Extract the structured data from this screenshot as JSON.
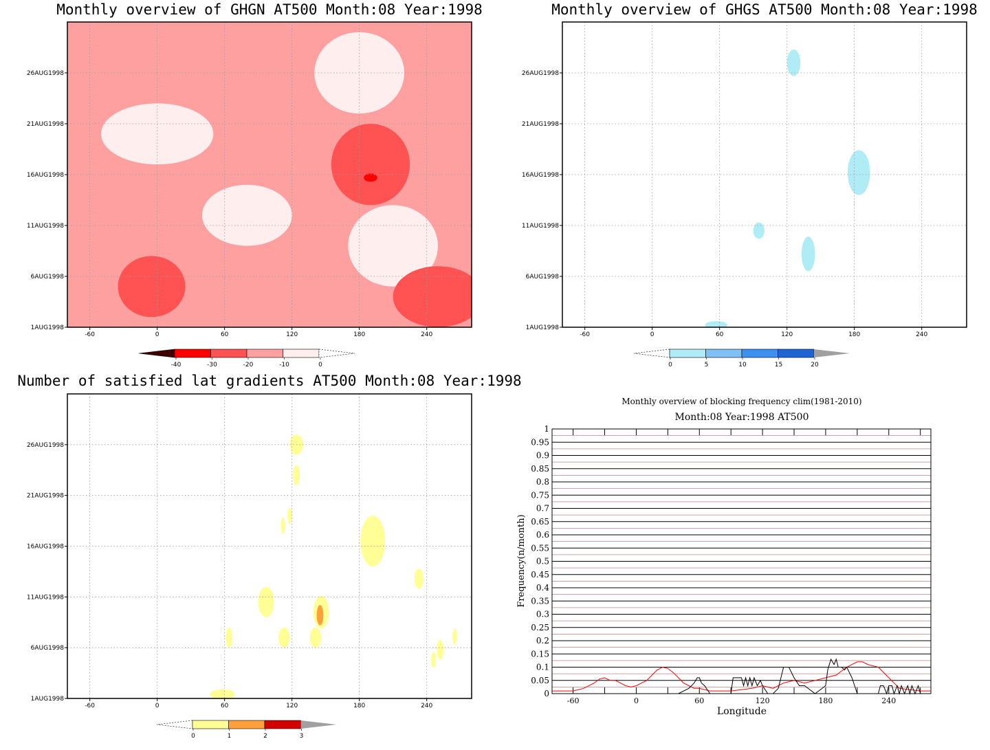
{
  "colors": {
    "red_scale": [
      "#3f0000",
      "#ff0000",
      "#ff5252",
      "#ffa0a0",
      "#ffeeee"
    ],
    "blue_scale": [
      "#b0ecf5",
      "#80c0f5",
      "#3c90f0",
      "#1e64d2",
      "#a0a0a0"
    ],
    "yellow_scale": [
      "#ffff96",
      "#ffa03c",
      "#d20000",
      "#a0a0a0"
    ],
    "freq_clim": "#ff0000",
    "freq_obs": "#000000",
    "grid_alt": "#c08080"
  },
  "chart_data": [
    {
      "type": "heatmap",
      "title": "Monthly overview of GHGN AT500 Month:08 Year:1998",
      "x_ticks": [
        "-60",
        "0",
        "60",
        "120",
        "180",
        "240"
      ],
      "x_tick_values": [
        -60,
        0,
        60,
        120,
        180,
        240
      ],
      "xlim": [
        -80,
        280
      ],
      "y_ticks": [
        "1AUG1998",
        "6AUG1998",
        "11AUG1998",
        "16AUG1998",
        "21AUG1998",
        "26AUG1998"
      ],
      "y_tick_values": [
        1,
        6,
        11,
        16,
        21,
        26
      ],
      "ylim": [
        1,
        31
      ],
      "colorbar": {
        "labels": [
          "-40",
          "-30",
          "-20",
          "-10",
          "0"
        ],
        "values": [
          -40,
          -30,
          -20,
          -10,
          0
        ]
      },
      "regions": [
        {
          "level": "-10..0",
          "lon": 180,
          "day": 26,
          "rx": 40,
          "ry": 4
        },
        {
          "level": "-10..0",
          "lon": 0,
          "day": 20,
          "rx": 50,
          "ry": 3
        },
        {
          "level": "-10..0",
          "lon": 80,
          "day": 12,
          "rx": 40,
          "ry": 3
        },
        {
          "level": "-10..0",
          "lon": 210,
          "day": 9,
          "rx": 40,
          "ry": 4
        },
        {
          "level": "-30..-20",
          "lon": 190,
          "day": 17,
          "rx": 35,
          "ry": 4
        },
        {
          "level": "-30..-20",
          "lon": -5,
          "day": 5,
          "rx": 30,
          "ry": 3
        },
        {
          "level": "-30..-20",
          "lon": 250,
          "day": 4,
          "rx": 40,
          "ry": 3
        },
        {
          "level": "-40..-30",
          "lon": 190,
          "day": 15.7,
          "rx": 6,
          "ry": 0.4
        }
      ]
    },
    {
      "type": "heatmap",
      "title": "Monthly overview of GHGS AT500 Month:08 Year:1998",
      "x_ticks": [
        "-60",
        "0",
        "60",
        "120",
        "180",
        "240"
      ],
      "x_tick_values": [
        -60,
        0,
        60,
        120,
        180,
        240
      ],
      "xlim": [
        -80,
        280
      ],
      "y_ticks": [
        "1AUG1998",
        "6AUG1998",
        "11AUG1998",
        "16AUG1998",
        "21AUG1998",
        "26AUG1998"
      ],
      "y_tick_values": [
        1,
        6,
        11,
        16,
        21,
        26
      ],
      "ylim": [
        1,
        31
      ],
      "colorbar": {
        "labels": [
          "0",
          "5",
          "10",
          "15",
          "20"
        ],
        "values": [
          0,
          5,
          10,
          15,
          20
        ]
      },
      "regions": [
        {
          "level": "0..5",
          "lon": 126,
          "day": 27,
          "rx": 6,
          "ry": 1.3
        },
        {
          "level": "0..5",
          "lon": 184,
          "day": 16.2,
          "rx": 10,
          "ry": 2.2
        },
        {
          "level": "0..5",
          "lon": 95,
          "day": 10.5,
          "rx": 5,
          "ry": 0.8
        },
        {
          "level": "0..5",
          "lon": 139,
          "day": 8.2,
          "rx": 6,
          "ry": 1.7
        },
        {
          "level": "0..5",
          "lon": 57,
          "day": 1.2,
          "rx": 10,
          "ry": 0.4
        }
      ]
    },
    {
      "type": "heatmap",
      "title": "Number of satisfied lat gradients AT500 Month:08 Year:1998",
      "x_ticks": [
        "-60",
        "0",
        "60",
        "120",
        "180",
        "240"
      ],
      "x_tick_values": [
        -60,
        0,
        60,
        120,
        180,
        240
      ],
      "xlim": [
        -80,
        280
      ],
      "y_ticks": [
        "1AUG1998",
        "6AUG1998",
        "11AUG1998",
        "16AUG1998",
        "21AUG1998",
        "26AUG1998"
      ],
      "y_tick_values": [
        1,
        6,
        11,
        16,
        21,
        26
      ],
      "ylim": [
        1,
        31
      ],
      "colorbar": {
        "labels": [
          "0",
          "1",
          "2",
          "3"
        ],
        "values": [
          0,
          1,
          2,
          3
        ]
      },
      "regions": [
        {
          "level": "0..1",
          "lon": 124,
          "day": 26,
          "rx": 6,
          "ry": 1
        },
        {
          "level": "0..1",
          "lon": 124,
          "day": 23,
          "rx": 3,
          "ry": 1
        },
        {
          "level": "0..1",
          "lon": 112,
          "day": 18,
          "rx": 2,
          "ry": 0.8
        },
        {
          "level": "0..1",
          "lon": 118,
          "day": 19,
          "rx": 2,
          "ry": 0.8
        },
        {
          "level": "0..1",
          "lon": 192,
          "day": 16.5,
          "rx": 11,
          "ry": 2.5
        },
        {
          "level": "0..1",
          "lon": 233,
          "day": 12.8,
          "rx": 4,
          "ry": 1
        },
        {
          "level": "0..1",
          "lon": 97,
          "day": 10.5,
          "rx": 7,
          "ry": 1.5
        },
        {
          "level": "0..1",
          "lon": 146,
          "day": 9.5,
          "rx": 7,
          "ry": 1.6
        },
        {
          "level": "0..1",
          "lon": 113,
          "day": 7,
          "rx": 5,
          "ry": 1
        },
        {
          "level": "0..1",
          "lon": 141,
          "day": 7,
          "rx": 5,
          "ry": 1
        },
        {
          "level": "0..1",
          "lon": 64,
          "day": 7,
          "rx": 3,
          "ry": 1
        },
        {
          "level": "0..1",
          "lon": 252,
          "day": 5.8,
          "rx": 3,
          "ry": 1
        },
        {
          "level": "0..1",
          "lon": 246,
          "day": 4.8,
          "rx": 2,
          "ry": 0.8
        },
        {
          "level": "0..1",
          "lon": 265,
          "day": 7.1,
          "rx": 2,
          "ry": 0.8
        },
        {
          "level": "0..1",
          "lon": 58,
          "day": 1.4,
          "rx": 11,
          "ry": 0.5
        },
        {
          "level": "1..2",
          "lon": 145,
          "day": 9.2,
          "rx": 3,
          "ry": 1
        }
      ]
    },
    {
      "type": "line",
      "title": "Monthly overview of blocking frequency clim(1981-2010)",
      "subtitle": "Month:08 Year:1998  AT500",
      "xlabel": "Longitude",
      "ylabel": "Frequency(n/month)",
      "xlim": [
        -80,
        280
      ],
      "ylim": [
        0,
        1
      ],
      "x_ticks": [
        "-60",
        "0",
        "60",
        "120",
        "180",
        "240"
      ],
      "x_tick_values": [
        -60,
        0,
        60,
        120,
        180,
        240
      ],
      "y_ticks": [
        "0",
        "0.05",
        "0.1",
        "0.15",
        "0.2",
        "0.25",
        "0.3",
        "0.35",
        "0.4",
        "0.45",
        "0.5",
        "0.55",
        "0.6",
        "0.65",
        "0.7",
        "0.75",
        "0.8",
        "0.85",
        "0.9",
        "0.95",
        "1"
      ],
      "series": [
        {
          "color": "#ff0000",
          "x": [
            -80,
            -70,
            -60,
            -50,
            -40,
            -35,
            -30,
            -25,
            -20,
            -15,
            -10,
            -5,
            0,
            5,
            10,
            15,
            20,
            25,
            30,
            35,
            40,
            45,
            50,
            55,
            60,
            70,
            80,
            90,
            100,
            110,
            120,
            130,
            140,
            150,
            160,
            170,
            180,
            190,
            200,
            205,
            210,
            215,
            220,
            225,
            230,
            240,
            250,
            260,
            270,
            280
          ],
          "y": [
            0.01,
            0.01,
            0.01,
            0.02,
            0.04,
            0.055,
            0.06,
            0.05,
            0.05,
            0.04,
            0.03,
            0.025,
            0.03,
            0.04,
            0.05,
            0.07,
            0.09,
            0.1,
            0.095,
            0.08,
            0.06,
            0.04,
            0.03,
            0.02,
            0.02,
            0.01,
            0.01,
            0.01,
            0.015,
            0.02,
            0.03,
            0.02,
            0.04,
            0.05,
            0.04,
            0.05,
            0.06,
            0.07,
            0.1,
            0.11,
            0.12,
            0.12,
            0.11,
            0.105,
            0.1,
            0.06,
            0.02,
            0.015,
            0.01,
            0.01
          ]
        },
        {
          "color": "#000000",
          "x": [
            -80,
            40,
            50,
            55,
            58,
            60,
            62,
            65,
            70,
            75,
            80,
            90,
            92,
            100,
            102,
            104,
            106,
            108,
            110,
            112,
            115,
            118,
            120,
            125,
            130,
            135,
            140,
            145,
            150,
            155,
            160,
            170,
            180,
            182,
            185,
            188,
            190,
            192,
            195,
            198,
            200,
            205,
            210,
            220,
            230,
            232,
            235,
            238,
            240,
            243,
            245,
            248,
            250,
            252,
            255,
            258,
            260,
            262,
            265,
            268,
            270,
            275,
            280
          ],
          "y": [
            0,
            0,
            0.02,
            0.04,
            0.06,
            0.06,
            0.04,
            0.03,
            0,
            0,
            0,
            0,
            0.06,
            0.06,
            0.03,
            0.06,
            0.03,
            0.06,
            0.03,
            0.06,
            0.03,
            0.05,
            0.03,
            0,
            0,
            0.02,
            0.1,
            0.1,
            0.06,
            0.03,
            0.03,
            0,
            0.03,
            0.09,
            0.13,
            0.11,
            0.13,
            0.1,
            0.1,
            0.09,
            0.1,
            0.06,
            0,
            0,
            0,
            0.03,
            0.03,
            0,
            0.03,
            0.03,
            0,
            0.03,
            0,
            0.03,
            0,
            0.03,
            0,
            0.03,
            0,
            0.03,
            0,
            0,
            0
          ]
        }
      ]
    }
  ]
}
